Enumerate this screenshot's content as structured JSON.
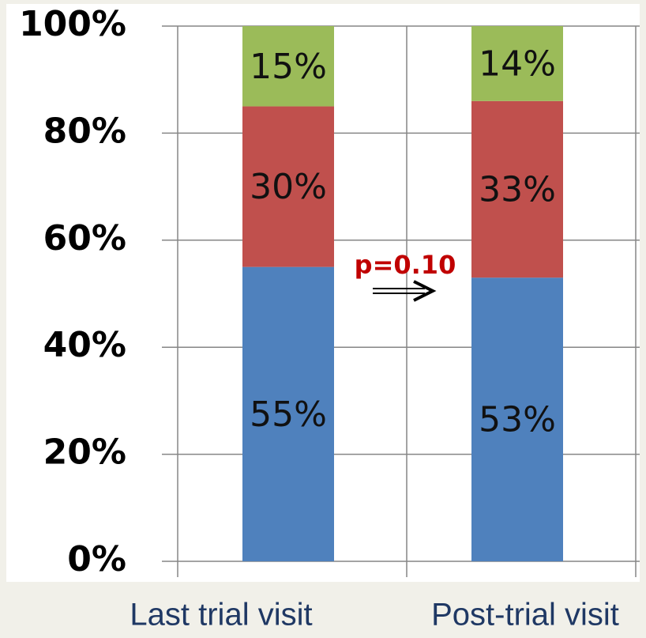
{
  "chart_data": {
    "type": "stacked_bar",
    "categories": [
      "Last trial visit",
      "Post-trial visit"
    ],
    "series": [
      {
        "color": "#4f81bd",
        "values": [
          55,
          53
        ],
        "value_labels": [
          "55%",
          "53%"
        ]
      },
      {
        "color": "#c0504d",
        "values": [
          30,
          33
        ],
        "value_labels": [
          "30%",
          "33%"
        ]
      },
      {
        "color": "#9bbb59",
        "values": [
          15,
          14
        ],
        "value_labels": [
          "15%",
          "14%"
        ]
      }
    ],
    "ylim": [
      0,
      100
    ],
    "yticks": [
      {
        "value": 0,
        "label": "0%"
      },
      {
        "value": 20,
        "label": "20%"
      },
      {
        "value": 40,
        "label": "40%"
      },
      {
        "value": 60,
        "label": "60%"
      },
      {
        "value": 80,
        "label": "80%"
      },
      {
        "value": 100,
        "label": "100%"
      }
    ],
    "grid": true,
    "annotations": [
      {
        "text": "p=0.10"
      }
    ]
  }
}
